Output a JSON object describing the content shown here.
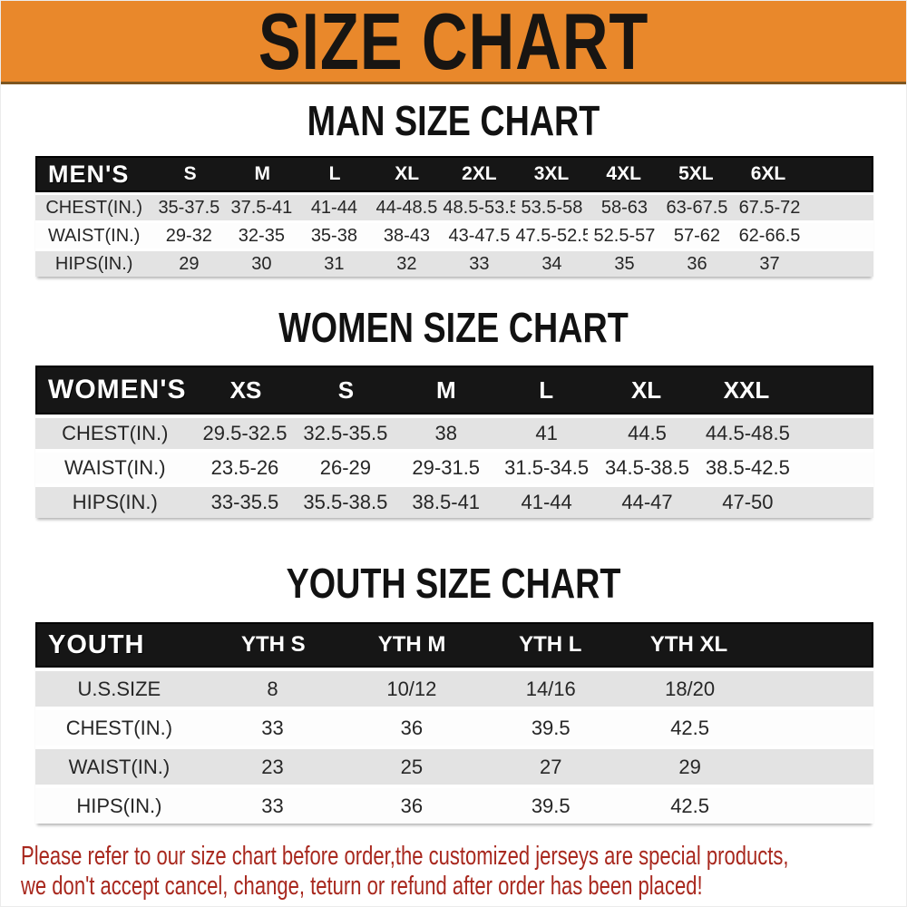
{
  "banner": {
    "title": "SIZE CHART"
  },
  "sections": [
    {
      "heading": "MAN SIZE CHART",
      "label": "MEN'S",
      "columns": [
        "S",
        "M",
        "L",
        "XL",
        "2XL",
        "3XL",
        "4XL",
        "5XL",
        "6XL"
      ],
      "rows": [
        {
          "label": "CHEST(IN.)",
          "values": [
            "35-37.5",
            "37.5-41",
            "41-44",
            "44-48.5",
            "48.5-53.5",
            "53.5-58",
            "58-63",
            "63-67.5",
            "67.5-72"
          ]
        },
        {
          "label": "WAIST(IN.)",
          "values": [
            "29-32",
            "32-35",
            "35-38",
            "38-43",
            "43-47.5",
            "47.5-52.5",
            "52.5-57",
            "57-62",
            "62-66.5"
          ]
        },
        {
          "label": "HIPS(IN.)",
          "values": [
            "29",
            "30",
            "31",
            "32",
            "33",
            "34",
            "35",
            "36",
            "37"
          ]
        }
      ]
    },
    {
      "heading": "WOMEN SIZE CHART",
      "label": "WOMEN'S",
      "columns": [
        "XS",
        "S",
        "M",
        "L",
        "XL",
        "XXL"
      ],
      "rows": [
        {
          "label": "CHEST(IN.)",
          "values": [
            "29.5-32.5",
            "32.5-35.5",
            "38",
            "41",
            "44.5",
            "44.5-48.5"
          ]
        },
        {
          "label": "WAIST(IN.)",
          "values": [
            "23.5-26",
            "26-29",
            "29-31.5",
            "31.5-34.5",
            "34.5-38.5",
            "38.5-42.5"
          ]
        },
        {
          "label": "HIPS(IN.)",
          "values": [
            "33-35.5",
            "35.5-38.5",
            "38.5-41",
            "41-44",
            "44-47",
            "47-50"
          ]
        }
      ]
    },
    {
      "heading": "YOUTH SIZE CHART",
      "label": "YOUTH",
      "columns": [
        "YTH S",
        "YTH M",
        "YTH L",
        "YTH XL"
      ],
      "rows": [
        {
          "label": "U.S.SIZE",
          "values": [
            "8",
            "10/12",
            "14/16",
            "18/20"
          ]
        },
        {
          "label": "CHEST(IN.)",
          "values": [
            "33",
            "36",
            "39.5",
            "42.5"
          ]
        },
        {
          "label": "WAIST(IN.)",
          "values": [
            "23",
            "25",
            "27",
            "29"
          ]
        },
        {
          "label": "HIPS(IN.)",
          "values": [
            "33",
            "36",
            "39.5",
            "42.5"
          ]
        }
      ]
    }
  ],
  "footer": {
    "line1": "Please refer to our size chart before order,the customized jerseys are special products,",
    "line2": "we don't accept cancel, change, teturn or refund after order has been placed!"
  },
  "colors": {
    "banner_bg": "#E9882B",
    "banner_text": "#181512",
    "header_bar_bg": "#161616",
    "header_bar_text": "#FFFFFF",
    "stripe_gray": "#E3E3E3",
    "row_white": "#FDFDFD",
    "cell_text": "#262626",
    "note_red": "#A8281E"
  }
}
